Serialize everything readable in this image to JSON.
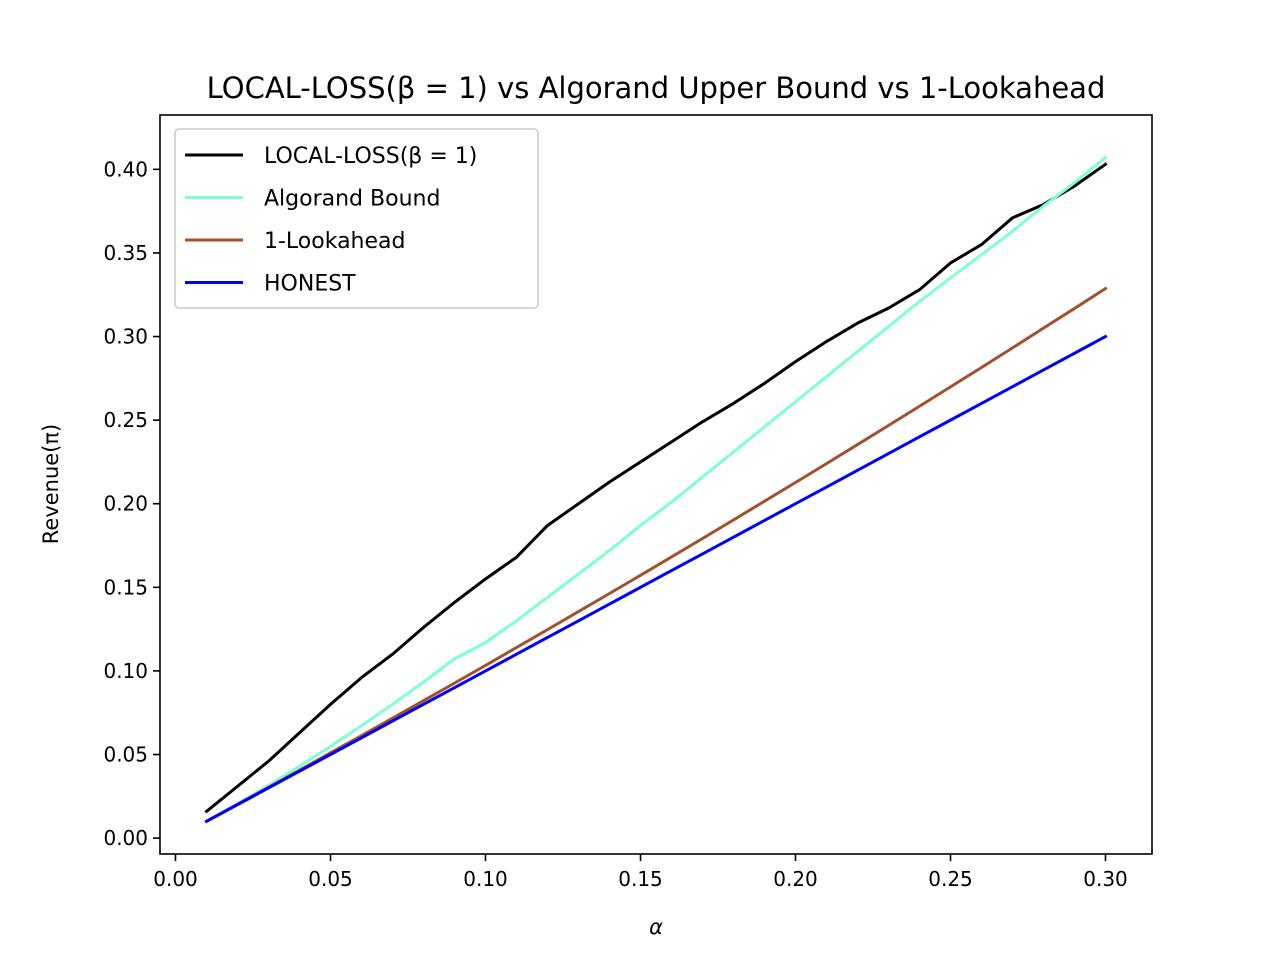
{
  "chart_data": {
    "type": "line",
    "title": "LOCAL-LOSS(β = 1) vs Algorand Upper Bound vs 1-Lookahead",
    "xlabel": "α",
    "ylabel": "Revenue(π)",
    "xlim": [
      -0.005,
      0.315
    ],
    "ylim": [
      -0.0095,
      0.4325
    ],
    "xticks": [
      0.0,
      0.05,
      0.1,
      0.15,
      0.2,
      0.25,
      0.3
    ],
    "xtick_labels": [
      "0.00",
      "0.05",
      "0.10",
      "0.15",
      "0.20",
      "0.25",
      "0.30"
    ],
    "yticks": [
      0.0,
      0.05,
      0.1,
      0.15,
      0.2,
      0.25,
      0.3,
      0.35,
      0.4
    ],
    "ytick_labels": [
      "0.00",
      "0.05",
      "0.10",
      "0.15",
      "0.20",
      "0.25",
      "0.30",
      "0.35",
      "0.40"
    ],
    "grid": false,
    "legend_position": "upper-left",
    "x": [
      0.01,
      0.02,
      0.03,
      0.04,
      0.05,
      0.06,
      0.07,
      0.08,
      0.09,
      0.1,
      0.11,
      0.12,
      0.13,
      0.14,
      0.15,
      0.16,
      0.17,
      0.18,
      0.19,
      0.2,
      0.21,
      0.22,
      0.23,
      0.24,
      0.25,
      0.26,
      0.27,
      0.28,
      0.29,
      0.3
    ],
    "series": [
      {
        "name": "LOCAL-LOSS(β = 1)",
        "color": "#000000",
        "values": [
          0.016,
          0.031,
          0.046,
          0.063,
          0.08,
          0.096,
          0.11,
          0.126,
          0.141,
          0.155,
          0.168,
          0.187,
          0.2,
          0.213,
          0.225,
          0.237,
          0.249,
          0.26,
          0.272,
          0.285,
          0.297,
          0.308,
          0.317,
          0.328,
          0.344,
          0.355,
          0.371,
          0.379,
          0.39,
          0.403
        ]
      },
      {
        "name": "Algorand Bound",
        "color": "#7fffd4",
        "values": [
          0.0101,
          0.0206,
          0.0315,
          0.043,
          0.0549,
          0.0672,
          0.08,
          0.0933,
          0.1072,
          0.117,
          0.13,
          0.144,
          0.158,
          0.172,
          0.187,
          0.201,
          0.216,
          0.231,
          0.246,
          0.261,
          0.276,
          0.291,
          0.306,
          0.321,
          0.335,
          0.349,
          0.363,
          0.378,
          0.392,
          0.407
        ]
      },
      {
        "name": "1-Lookahead",
        "color": "#a0522d",
        "values": [
          0.0101,
          0.0202,
          0.0304,
          0.0406,
          0.051,
          0.0613,
          0.0717,
          0.0822,
          0.0927,
          0.1033,
          0.114,
          0.1247,
          0.1355,
          0.1463,
          0.1572,
          0.1682,
          0.1792,
          0.1903,
          0.2015,
          0.2127,
          0.224,
          0.2354,
          0.2468,
          0.2583,
          0.2699,
          0.2815,
          0.2932,
          0.305,
          0.3168,
          0.3287
        ]
      },
      {
        "name": "HONEST",
        "color": "#0000ff",
        "values": [
          0.01,
          0.02,
          0.03,
          0.04,
          0.05,
          0.06,
          0.07,
          0.08,
          0.09,
          0.1,
          0.11,
          0.12,
          0.13,
          0.14,
          0.15,
          0.16,
          0.17,
          0.18,
          0.19,
          0.2,
          0.21,
          0.22,
          0.23,
          0.24,
          0.25,
          0.26,
          0.27,
          0.28,
          0.29,
          0.3
        ]
      }
    ]
  }
}
